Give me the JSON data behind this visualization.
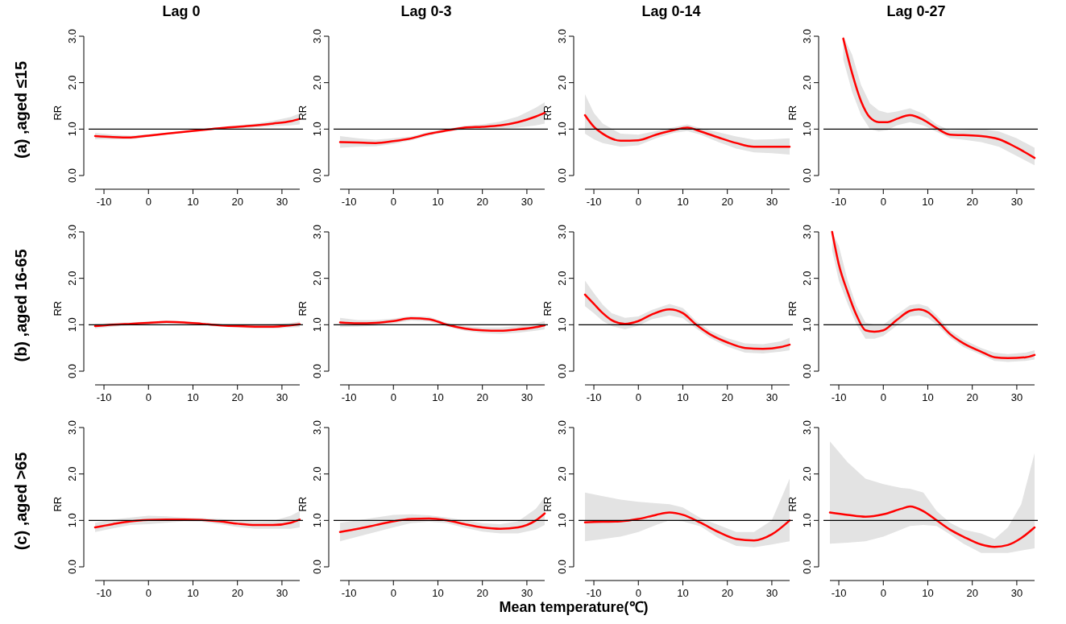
{
  "chart_data": [
    {
      "type": "line",
      "title": "Lag 0",
      "ylabel": "RR",
      "annotations": [
        "(a) ,aged ≤15"
      ],
      "xlim": [
        -12,
        34
      ],
      "xticks": [
        -10,
        0,
        10,
        20,
        30
      ],
      "ylim": [
        0,
        3
      ],
      "yticks": [
        {
          "value": 0,
          "label": "0.0"
        },
        {
          "value": 1,
          "label": "1.0"
        },
        {
          "value": 2,
          "label": "2.0"
        },
        {
          "value": 3,
          "label": "3.0"
        }
      ],
      "ref_lines": [
        {
          "axis": "y",
          "value": 1,
          "color": "#000000"
        }
      ],
      "series": [
        {
          "color": "#ff0000",
          "x": [
            -12,
            -8,
            -4,
            0,
            4,
            8,
            12,
            16,
            20,
            24,
            28,
            32,
            34
          ],
          "values": [
            0.85,
            0.83,
            0.82,
            0.86,
            0.9,
            0.94,
            0.98,
            1.02,
            1.05,
            1.08,
            1.12,
            1.17,
            1.22
          ],
          "lower": [
            0.78,
            0.78,
            0.78,
            0.83,
            0.88,
            0.92,
            0.96,
            1.0,
            1.02,
            1.04,
            1.06,
            1.08,
            1.1
          ],
          "upper": [
            0.92,
            0.88,
            0.86,
            0.89,
            0.92,
            0.96,
            1.0,
            1.04,
            1.08,
            1.12,
            1.18,
            1.26,
            1.34
          ]
        }
      ]
    },
    {
      "type": "line",
      "title": "Lag 0-3",
      "ylabel": "RR",
      "xlim": [
        -12,
        34
      ],
      "xticks": [
        -10,
        0,
        10,
        20,
        30
      ],
      "ylim": [
        0,
        3
      ],
      "yticks": [
        {
          "value": 0,
          "label": "0.0"
        },
        {
          "value": 1,
          "label": "1.0"
        },
        {
          "value": 2,
          "label": "2.0"
        },
        {
          "value": 3,
          "label": "3.0"
        }
      ],
      "ref_lines": [
        {
          "axis": "y",
          "value": 1,
          "color": "#000000"
        }
      ],
      "series": [
        {
          "color": "#ff0000",
          "x": [
            -12,
            -8,
            -4,
            0,
            4,
            8,
            12,
            16,
            20,
            24,
            28,
            32,
            34
          ],
          "values": [
            0.72,
            0.71,
            0.7,
            0.74,
            0.8,
            0.9,
            0.97,
            1.03,
            1.05,
            1.08,
            1.15,
            1.27,
            1.35
          ],
          "lower": [
            0.6,
            0.62,
            0.63,
            0.68,
            0.76,
            0.86,
            0.94,
            0.99,
            1.0,
            1.0,
            1.03,
            1.08,
            1.12
          ],
          "upper": [
            0.85,
            0.8,
            0.77,
            0.8,
            0.84,
            0.94,
            1.0,
            1.07,
            1.1,
            1.16,
            1.27,
            1.46,
            1.58
          ]
        }
      ]
    },
    {
      "type": "line",
      "title": "Lag 0-14",
      "ylabel": "RR",
      "xlim": [
        -12,
        34
      ],
      "xticks": [
        -10,
        0,
        10,
        20,
        30
      ],
      "ylim": [
        0,
        3
      ],
      "yticks": [
        {
          "value": 0,
          "label": "0.0"
        },
        {
          "value": 1,
          "label": "1.0"
        },
        {
          "value": 2,
          "label": "2.0"
        },
        {
          "value": 3,
          "label": "3.0"
        }
      ],
      "ref_lines": [
        {
          "axis": "y",
          "value": 1,
          "color": "#000000"
        }
      ],
      "series": [
        {
          "color": "#ff0000",
          "x": [
            -12,
            -10,
            -8,
            -4,
            0,
            4,
            8,
            11,
            14,
            18,
            22,
            26,
            30,
            34
          ],
          "values": [
            1.3,
            1.05,
            0.9,
            0.75,
            0.76,
            0.88,
            0.98,
            1.03,
            0.95,
            0.82,
            0.7,
            0.62,
            0.62,
            0.62
          ],
          "lower": [
            0.9,
            0.78,
            0.7,
            0.62,
            0.65,
            0.8,
            0.92,
            0.96,
            0.88,
            0.72,
            0.58,
            0.5,
            0.48,
            0.45
          ],
          "upper": [
            1.75,
            1.35,
            1.12,
            0.9,
            0.88,
            0.96,
            1.04,
            1.1,
            1.02,
            0.93,
            0.84,
            0.77,
            0.78,
            0.8
          ]
        }
      ]
    },
    {
      "type": "line",
      "title": "Lag 0-27",
      "ylabel": "RR",
      "xlim": [
        -12,
        34
      ],
      "xticks": [
        -10,
        0,
        10,
        20,
        30
      ],
      "ylim": [
        0,
        3
      ],
      "yticks": [
        {
          "value": 0,
          "label": "0.0"
        },
        {
          "value": 1,
          "label": "1.0"
        },
        {
          "value": 2,
          "label": "2.0"
        },
        {
          "value": 3,
          "label": "3.0"
        }
      ],
      "ref_lines": [
        {
          "axis": "y",
          "value": 1,
          "color": "#000000"
        }
      ],
      "series": [
        {
          "color": "#ff0000",
          "x": [
            -9,
            -7,
            -5,
            -3,
            -1,
            1,
            3,
            6,
            9,
            12,
            15,
            18,
            22,
            26,
            30,
            34
          ],
          "values": [
            2.95,
            2.2,
            1.6,
            1.25,
            1.15,
            1.15,
            1.22,
            1.3,
            1.2,
            1.02,
            0.88,
            0.87,
            0.85,
            0.78,
            0.6,
            0.38
          ],
          "lower": [
            2.5,
            1.8,
            1.3,
            1.0,
            0.95,
            0.98,
            1.08,
            1.15,
            1.08,
            0.94,
            0.8,
            0.77,
            0.72,
            0.62,
            0.42,
            0.22
          ],
          "upper": [
            3.0,
            2.6,
            1.95,
            1.55,
            1.4,
            1.35,
            1.38,
            1.45,
            1.33,
            1.1,
            0.97,
            0.98,
            1.0,
            0.95,
            0.8,
            0.6
          ]
        }
      ]
    },
    {
      "type": "line",
      "ylabel": "RR",
      "annotations": [
        "(b) ,aged 16-65"
      ],
      "xlim": [
        -12,
        34
      ],
      "xticks": [
        -10,
        0,
        10,
        20,
        30
      ],
      "ylim": [
        0,
        3
      ],
      "yticks": [
        {
          "value": 0,
          "label": "0.0"
        },
        {
          "value": 1,
          "label": "1.0"
        },
        {
          "value": 2,
          "label": "2.0"
        },
        {
          "value": 3,
          "label": "3.0"
        }
      ],
      "ref_lines": [
        {
          "axis": "y",
          "value": 1,
          "color": "#000000"
        }
      ],
      "series": [
        {
          "color": "#ff0000",
          "x": [
            -12,
            -8,
            -4,
            0,
            4,
            8,
            12,
            16,
            20,
            24,
            28,
            32,
            34
          ],
          "values": [
            0.97,
            1.0,
            1.02,
            1.04,
            1.06,
            1.05,
            1.02,
            0.99,
            0.97,
            0.96,
            0.96,
            0.99,
            1.01
          ],
          "lower": [
            0.92,
            0.96,
            0.99,
            1.01,
            1.03,
            1.02,
            0.99,
            0.96,
            0.94,
            0.92,
            0.92,
            0.94,
            0.95
          ],
          "upper": [
            1.02,
            1.04,
            1.05,
            1.07,
            1.09,
            1.08,
            1.05,
            1.02,
            1.0,
            1.0,
            1.01,
            1.04,
            1.07
          ]
        }
      ]
    },
    {
      "type": "line",
      "ylabel": "RR",
      "xlim": [
        -12,
        34
      ],
      "xticks": [
        -10,
        0,
        10,
        20,
        30
      ],
      "ylim": [
        0,
        3
      ],
      "yticks": [
        {
          "value": 0,
          "label": "0.0"
        },
        {
          "value": 1,
          "label": "1.0"
        },
        {
          "value": 2,
          "label": "2.0"
        },
        {
          "value": 3,
          "label": "3.0"
        }
      ],
      "ref_lines": [
        {
          "axis": "y",
          "value": 1,
          "color": "#000000"
        }
      ],
      "series": [
        {
          "color": "#ff0000",
          "x": [
            -12,
            -8,
            -4,
            0,
            4,
            8,
            12,
            16,
            20,
            24,
            28,
            32,
            34
          ],
          "values": [
            1.05,
            1.03,
            1.04,
            1.08,
            1.14,
            1.12,
            1.0,
            0.92,
            0.88,
            0.87,
            0.9,
            0.95,
            0.99
          ],
          "lower": [
            0.95,
            0.96,
            0.98,
            1.03,
            1.09,
            1.07,
            0.96,
            0.87,
            0.82,
            0.8,
            0.83,
            0.87,
            0.9
          ],
          "upper": [
            1.15,
            1.1,
            1.1,
            1.13,
            1.19,
            1.17,
            1.04,
            0.97,
            0.94,
            0.94,
            0.97,
            1.03,
            1.08
          ]
        }
      ]
    },
    {
      "type": "line",
      "ylabel": "RR",
      "xlim": [
        -12,
        34
      ],
      "xticks": [
        -10,
        0,
        10,
        20,
        30
      ],
      "ylim": [
        0,
        3
      ],
      "yticks": [
        {
          "value": 0,
          "label": "0.0"
        },
        {
          "value": 1,
          "label": "1.0"
        },
        {
          "value": 2,
          "label": "2.0"
        },
        {
          "value": 3,
          "label": "3.0"
        }
      ],
      "ref_lines": [
        {
          "axis": "y",
          "value": 1,
          "color": "#000000"
        }
      ],
      "series": [
        {
          "color": "#ff0000",
          "x": [
            -12,
            -10,
            -8,
            -6,
            -3,
            0,
            3,
            7,
            10,
            13,
            16,
            20,
            24,
            28,
            32,
            34
          ],
          "values": [
            1.65,
            1.45,
            1.25,
            1.1,
            1.02,
            1.08,
            1.22,
            1.33,
            1.25,
            1.0,
            0.8,
            0.62,
            0.5,
            0.48,
            0.52,
            0.57
          ],
          "lower": [
            1.4,
            1.25,
            1.08,
            0.97,
            0.9,
            0.98,
            1.12,
            1.2,
            1.14,
            0.92,
            0.72,
            0.53,
            0.4,
            0.38,
            0.42,
            0.45
          ],
          "upper": [
            1.95,
            1.68,
            1.43,
            1.25,
            1.15,
            1.18,
            1.32,
            1.45,
            1.36,
            1.08,
            0.88,
            0.71,
            0.6,
            0.58,
            0.64,
            0.72
          ]
        }
      ]
    },
    {
      "type": "line",
      "ylabel": "RR",
      "xlim": [
        -12,
        34
      ],
      "xticks": [
        -10,
        0,
        10,
        20,
        30
      ],
      "ylim": [
        0,
        3
      ],
      "yticks": [
        {
          "value": 0,
          "label": "0.0"
        },
        {
          "value": 1,
          "label": "1.0"
        },
        {
          "value": 2,
          "label": "2.0"
        },
        {
          "value": 3,
          "label": "3.0"
        }
      ],
      "ref_lines": [
        {
          "axis": "y",
          "value": 1,
          "color": "#000000"
        }
      ],
      "series": [
        {
          "color": "#ff0000",
          "x": [
            -11.5,
            -10,
            -8,
            -6,
            -4,
            -2,
            0,
            3,
            6,
            8,
            10,
            12,
            15,
            18,
            22,
            25,
            28,
            32,
            34
          ],
          "values": [
            3.0,
            2.3,
            1.7,
            1.2,
            0.88,
            0.85,
            0.88,
            1.1,
            1.3,
            1.33,
            1.27,
            1.1,
            0.8,
            0.6,
            0.42,
            0.3,
            0.28,
            0.3,
            0.35
          ],
          "lower": [
            2.6,
            1.95,
            1.45,
            1.0,
            0.7,
            0.7,
            0.76,
            0.98,
            1.18,
            1.2,
            1.15,
            1.0,
            0.72,
            0.52,
            0.35,
            0.22,
            0.2,
            0.22,
            0.25
          ],
          "upper": [
            3.0,
            2.7,
            1.95,
            1.4,
            1.05,
            1.0,
            1.0,
            1.22,
            1.42,
            1.45,
            1.39,
            1.2,
            0.88,
            0.68,
            0.5,
            0.4,
            0.37,
            0.4,
            0.45
          ]
        }
      ]
    },
    {
      "type": "line",
      "ylabel": "RR",
      "annotations": [
        "(c) ,aged >65"
      ],
      "xlim": [
        -12,
        34
      ],
      "xticks": [
        -10,
        0,
        10,
        20,
        30
      ],
      "ylim": [
        0,
        3
      ],
      "yticks": [
        {
          "value": 0,
          "label": "0.0"
        },
        {
          "value": 1,
          "label": "1.0"
        },
        {
          "value": 2,
          "label": "2.0"
        },
        {
          "value": 3,
          "label": "3.0"
        }
      ],
      "ref_lines": [
        {
          "axis": "y",
          "value": 1,
          "color": "#000000"
        }
      ],
      "series": [
        {
          "color": "#ff0000",
          "x": [
            -12,
            -8,
            -4,
            0,
            4,
            8,
            12,
            16,
            20,
            24,
            28,
            32,
            34
          ],
          "values": [
            0.85,
            0.92,
            0.98,
            1.01,
            1.02,
            1.02,
            1.01,
            0.98,
            0.93,
            0.9,
            0.9,
            0.95,
            1.02
          ],
          "lower": [
            0.75,
            0.83,
            0.9,
            0.92,
            0.95,
            0.98,
            0.97,
            0.92,
            0.86,
            0.82,
            0.82,
            0.82,
            0.85
          ],
          "upper": [
            0.95,
            1.02,
            1.06,
            1.1,
            1.09,
            1.06,
            1.05,
            1.03,
            1.0,
            0.98,
            0.99,
            1.1,
            1.2
          ]
        }
      ]
    },
    {
      "type": "line",
      "ylabel": "RR",
      "xlabel": "Mean temperature(℃)",
      "xlim": [
        -12,
        34
      ],
      "xticks": [
        -10,
        0,
        10,
        20,
        30
      ],
      "ylim": [
        0,
        3
      ],
      "yticks": [
        {
          "value": 0,
          "label": "0.0"
        },
        {
          "value": 1,
          "label": "1.0"
        },
        {
          "value": 2,
          "label": "2.0"
        },
        {
          "value": 3,
          "label": "3.0"
        }
      ],
      "ref_lines": [
        {
          "axis": "y",
          "value": 1,
          "color": "#000000"
        }
      ],
      "series": [
        {
          "color": "#ff0000",
          "x": [
            -12,
            -8,
            -4,
            0,
            4,
            8,
            12,
            16,
            20,
            24,
            28,
            32,
            34
          ],
          "values": [
            0.75,
            0.82,
            0.9,
            0.98,
            1.03,
            1.04,
            1.0,
            0.92,
            0.85,
            0.82,
            0.85,
            1.0,
            1.15
          ],
          "lower": [
            0.55,
            0.65,
            0.75,
            0.85,
            0.94,
            0.97,
            0.94,
            0.84,
            0.76,
            0.72,
            0.72,
            0.8,
            0.9
          ],
          "upper": [
            0.95,
            1.0,
            1.06,
            1.12,
            1.13,
            1.11,
            1.06,
            1.0,
            0.94,
            0.92,
            0.98,
            1.25,
            1.5
          ]
        }
      ]
    },
    {
      "type": "line",
      "ylabel": "RR",
      "xlim": [
        -12,
        34
      ],
      "xticks": [
        -10,
        0,
        10,
        20,
        30
      ],
      "ylim": [
        0,
        3
      ],
      "yticks": [
        {
          "value": 0,
          "label": "0.0"
        },
        {
          "value": 1,
          "label": "1.0"
        },
        {
          "value": 2,
          "label": "2.0"
        },
        {
          "value": 3,
          "label": "3.0"
        }
      ],
      "ref_lines": [
        {
          "axis": "y",
          "value": 1,
          "color": "#000000"
        }
      ],
      "series": [
        {
          "color": "#ff0000",
          "x": [
            -12,
            -8,
            -4,
            0,
            4,
            7,
            10,
            14,
            18,
            22,
            26,
            30,
            34
          ],
          "values": [
            0.96,
            0.97,
            0.98,
            1.03,
            1.12,
            1.17,
            1.12,
            0.95,
            0.75,
            0.6,
            0.57,
            0.7,
            1.0
          ],
          "lower": [
            0.55,
            0.6,
            0.65,
            0.75,
            0.9,
            1.0,
            0.98,
            0.87,
            0.62,
            0.45,
            0.42,
            0.48,
            0.55
          ],
          "upper": [
            1.6,
            1.52,
            1.45,
            1.4,
            1.37,
            1.35,
            1.28,
            1.05,
            0.9,
            0.75,
            0.75,
            1.0,
            1.9
          ]
        }
      ]
    },
    {
      "type": "line",
      "ylabel": "RR",
      "xlim": [
        -12,
        34
      ],
      "xticks": [
        -10,
        0,
        10,
        20,
        30
      ],
      "ylim": [
        0,
        3
      ],
      "yticks": [
        {
          "value": 0,
          "label": "0.0"
        },
        {
          "value": 1,
          "label": "1.0"
        },
        {
          "value": 2,
          "label": "2.0"
        },
        {
          "value": 3,
          "label": "3.0"
        }
      ],
      "ref_lines": [
        {
          "axis": "y",
          "value": 1,
          "color": "#000000"
        }
      ],
      "series": [
        {
          "color": "#ff0000",
          "x": [
            -12,
            -8,
            -4,
            0,
            4,
            6,
            9,
            12,
            15,
            18,
            22,
            25,
            28,
            31,
            34
          ],
          "values": [
            1.17,
            1.12,
            1.08,
            1.13,
            1.25,
            1.3,
            1.2,
            1.0,
            0.8,
            0.65,
            0.48,
            0.43,
            0.47,
            0.62,
            0.85
          ],
          "lower": [
            0.5,
            0.52,
            0.55,
            0.65,
            0.8,
            0.88,
            0.9,
            0.88,
            0.7,
            0.5,
            0.3,
            0.3,
            0.3,
            0.35,
            0.4
          ],
          "upper": [
            2.7,
            2.25,
            1.9,
            1.78,
            1.7,
            1.68,
            1.6,
            1.2,
            0.95,
            0.8,
            0.72,
            0.6,
            0.85,
            1.35,
            2.45
          ]
        }
      ]
    }
  ]
}
